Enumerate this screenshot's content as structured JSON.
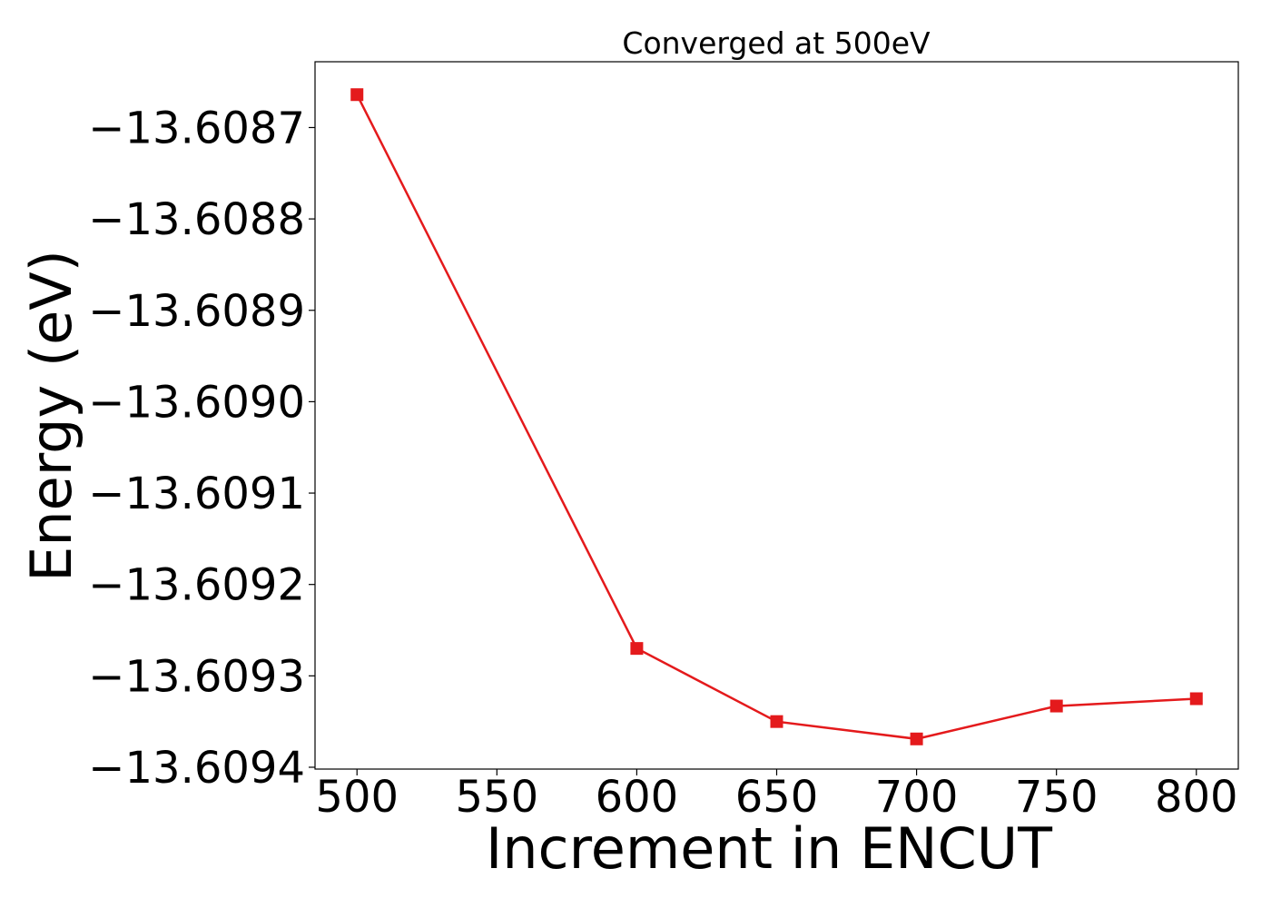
{
  "chart_data": {
    "type": "line",
    "title": "Converged at 500eV",
    "xlabel": "Increment in ENCUT",
    "ylabel": "Energy (eV)",
    "x": [
      500,
      600,
      650,
      700,
      750,
      800
    ],
    "series": [
      {
        "values": [
          -13.608664,
          -13.60927,
          -13.60935,
          -13.609369,
          -13.609333,
          -13.609325
        ],
        "color": "#e41a1c",
        "marker": "square"
      }
    ],
    "xlim": [
      485,
      815
    ],
    "ylim": [
      -13.609402,
      -13.608628
    ],
    "xticks": [
      500,
      550,
      600,
      650,
      700,
      750,
      800
    ],
    "xtick_labels": [
      "500",
      "550",
      "600",
      "650",
      "700",
      "750",
      "800"
    ],
    "yticks": [
      -13.6087,
      -13.6088,
      -13.6089,
      -13.609,
      -13.6091,
      -13.6092,
      -13.6093,
      -13.6094
    ],
    "ytick_labels": [
      "−13.6087",
      "−13.6088",
      "−13.6089",
      "−13.6090",
      "−13.6091",
      "−13.6092",
      "−13.6093",
      "−13.6094"
    ],
    "grid": false,
    "legend": "none"
  }
}
